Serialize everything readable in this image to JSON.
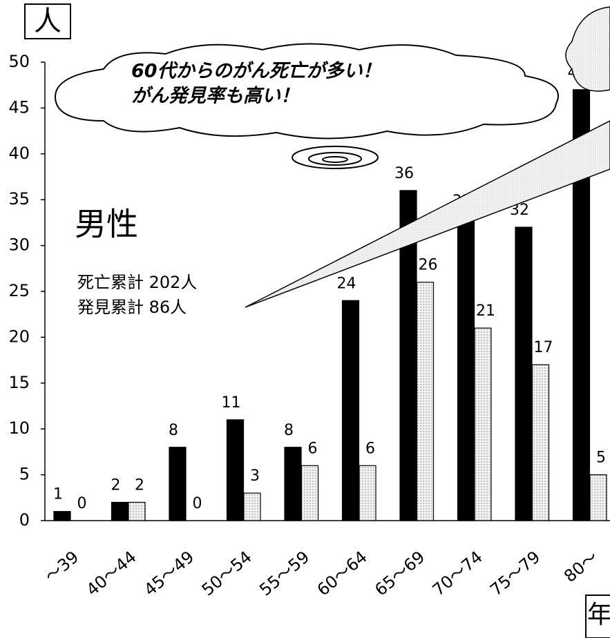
{
  "chart_data": {
    "type": "bar",
    "y_unit": "人",
    "x_unit": "年",
    "label": "男性",
    "notes": [
      "死亡累計 202人",
      "発見累計 86人"
    ],
    "callout": [
      "60代からのがん死亡が多い！",
      "がん発見率も高い！"
    ],
    "categories": [
      "～39",
      "40～44",
      "45～49",
      "50～54",
      "55～59",
      "60～64",
      "65～69",
      "70～74",
      "75～79",
      "80～"
    ],
    "series": [
      {
        "color": "#000000",
        "values": [
          1,
          2,
          8,
          11,
          8,
          24,
          36,
          33,
          32,
          47
        ]
      },
      {
        "color": "#ebebeb",
        "values": [
          0,
          2,
          0,
          3,
          6,
          6,
          26,
          21,
          17,
          5
        ]
      }
    ],
    "ylim": [
      0,
      50
    ],
    "yticks": [
      0,
      5,
      10,
      15,
      20,
      25,
      30,
      35,
      40,
      45,
      50
    ]
  }
}
